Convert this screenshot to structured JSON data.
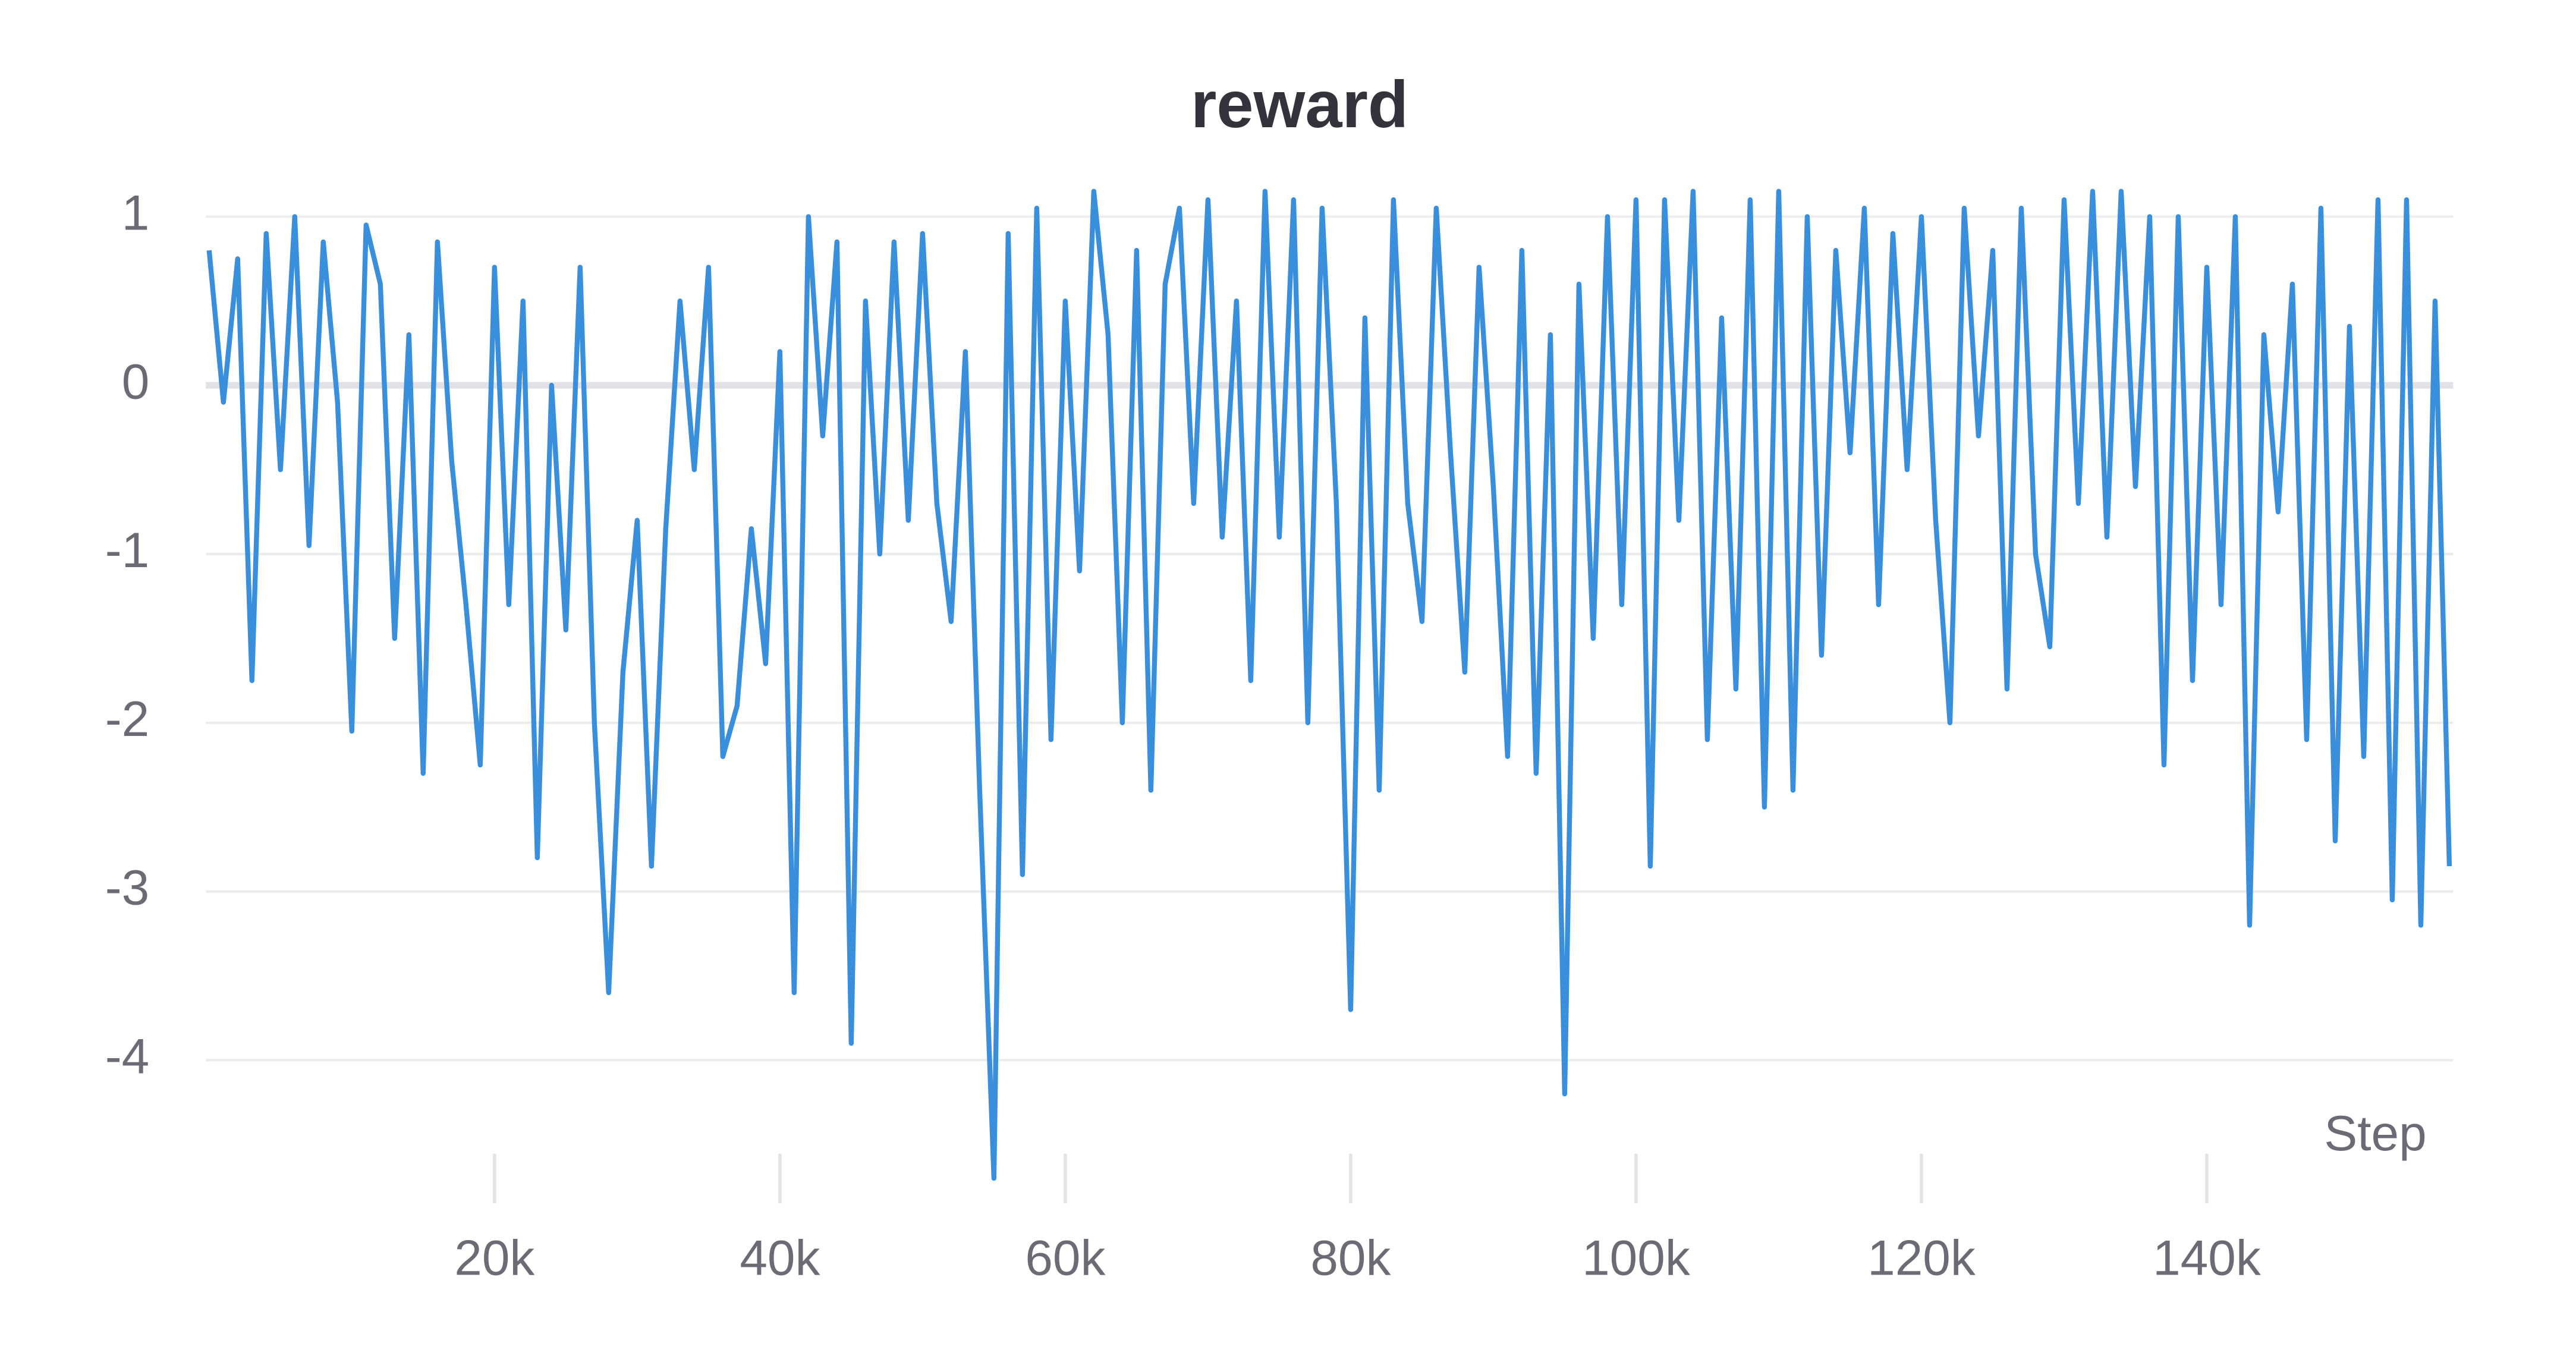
{
  "chart_data": {
    "type": "line",
    "title": "reward",
    "x_label": "Step",
    "color": "#3a8fdc",
    "grid": true,
    "xlim": [
      0,
      157500
    ],
    "ylim": [
      -4.8,
      1.25
    ],
    "xticks": [
      {
        "value": 20000,
        "label": "20k"
      },
      {
        "value": 40000,
        "label": "40k"
      },
      {
        "value": 60000,
        "label": "60k"
      },
      {
        "value": 80000,
        "label": "80k"
      },
      {
        "value": 100000,
        "label": "100k"
      },
      {
        "value": 120000,
        "label": "120k"
      },
      {
        "value": 140000,
        "label": "140k"
      }
    ],
    "yticks": [
      1,
      0,
      -1,
      -2,
      -3,
      -4
    ],
    "x": [
      0,
      1000,
      2000,
      3000,
      4000,
      5000,
      6000,
      7000,
      8000,
      9000,
      10000,
      11000,
      12000,
      13000,
      14000,
      15000,
      16000,
      17000,
      18000,
      19000,
      20000,
      21000,
      22000,
      23000,
      24000,
      25000,
      26000,
      27000,
      28000,
      29000,
      30000,
      31000,
      32000,
      33000,
      34000,
      35000,
      36000,
      37000,
      38000,
      39000,
      40000,
      41000,
      42000,
      43000,
      44000,
      45000,
      46000,
      47000,
      48000,
      49000,
      50000,
      51000,
      52000,
      53000,
      54000,
      55000,
      56000,
      57000,
      58000,
      59000,
      60000,
      61000,
      62000,
      63000,
      64000,
      65000,
      66000,
      67000,
      68000,
      69000,
      70000,
      71000,
      72000,
      73000,
      74000,
      75000,
      76000,
      77000,
      78000,
      79000,
      80000,
      81000,
      82000,
      83000,
      84000,
      85000,
      86000,
      87000,
      88000,
      89000,
      90000,
      91000,
      92000,
      93000,
      94000,
      95000,
      96000,
      97000,
      98000,
      99000,
      100000,
      101000,
      102000,
      103000,
      104000,
      105000,
      106000,
      107000,
      108000,
      109000,
      110000,
      111000,
      112000,
      113000,
      114000,
      115000,
      116000,
      117000,
      118000,
      119000,
      120000,
      121000,
      122000,
      123000,
      124000,
      125000,
      126000,
      127000,
      128000,
      129000,
      130000,
      131000,
      132000,
      133000,
      134000,
      135000,
      136000,
      137000,
      138000,
      139000,
      140000,
      141000,
      142000,
      143000,
      144000,
      145000,
      146000,
      147000,
      148000,
      149000,
      150000,
      151000,
      152000,
      153000,
      154000,
      155000,
      156000,
      157000
    ],
    "values": [
      0.8,
      -0.1,
      0.75,
      -1.75,
      0.9,
      -0.5,
      1.0,
      -0.95,
      0.85,
      -0.1,
      -2.05,
      0.95,
      0.6,
      -1.5,
      0.3,
      -2.3,
      0.85,
      -0.45,
      -1.3,
      -2.25,
      0.7,
      -1.3,
      0.5,
      -2.8,
      0.0,
      -1.45,
      0.7,
      -2.0,
      -3.6,
      -1.7,
      -0.8,
      -2.85,
      -0.85,
      0.5,
      -0.5,
      0.7,
      -2.2,
      -1.9,
      -0.85,
      -1.65,
      0.2,
      -3.6,
      1.0,
      -0.3,
      0.85,
      -3.9,
      0.5,
      -1.0,
      0.85,
      -0.8,
      0.9,
      -0.7,
      -1.4,
      0.2,
      -2.4,
      -4.7,
      0.9,
      -2.9,
      1.05,
      -2.1,
      0.5,
      -1.1,
      1.15,
      0.3,
      -2.0,
      0.8,
      -2.4,
      0.6,
      1.05,
      -0.7,
      1.1,
      -0.9,
      0.5,
      -1.75,
      1.15,
      -0.9,
      1.1,
      -2.0,
      1.05,
      -0.7,
      -3.7,
      0.4,
      -2.4,
      1.1,
      -0.7,
      -1.4,
      1.05,
      -0.4,
      -1.7,
      0.7,
      -0.6,
      -2.2,
      0.8,
      -2.3,
      0.3,
      -4.2,
      0.6,
      -1.5,
      1.0,
      -1.3,
      1.1,
      -2.85,
      1.1,
      -0.8,
      1.15,
      -2.1,
      0.4,
      -1.8,
      1.1,
      -2.5,
      1.15,
      -2.4,
      1.0,
      -1.6,
      0.8,
      -0.4,
      1.05,
      -1.3,
      0.9,
      -0.5,
      1.0,
      -0.8,
      -2.0,
      1.05,
      -0.3,
      0.8,
      -1.8,
      1.05,
      -1.0,
      -1.55,
      1.1,
      -0.7,
      1.15,
      -0.9,
      1.15,
      -0.6,
      1.0,
      -2.25,
      1.0,
      -1.75,
      0.7,
      -1.3,
      1.0,
      -3.2,
      0.3,
      -0.75,
      0.6,
      -2.1,
      1.05,
      -2.7,
      0.35,
      -2.2,
      1.1,
      -3.05,
      1.1,
      -3.2,
      0.5,
      -2.85
    ]
  }
}
